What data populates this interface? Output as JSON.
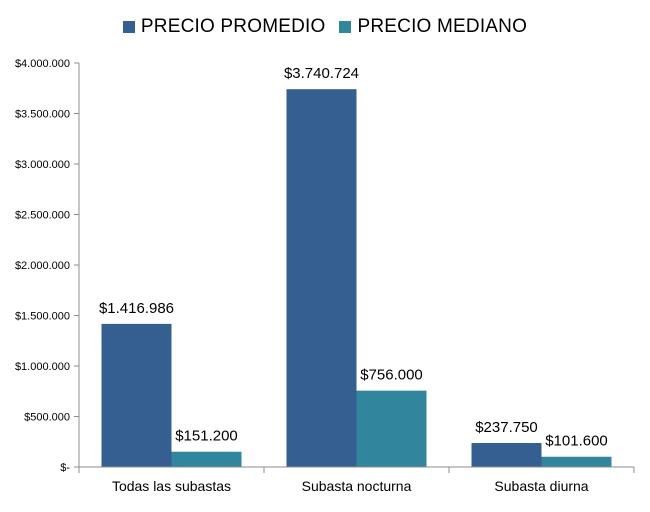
{
  "chart_data": {
    "type": "bar",
    "categories": [
      "Todas las subastas",
      "Subasta nocturna",
      "Subasta diurna"
    ],
    "series": [
      {
        "name": "PRECIO PROMEDIO",
        "color": "#355f91",
        "values": [
          1416986,
          3740724,
          237750
        ],
        "labels": [
          "$1.416.986",
          "$3.740.724",
          "$237.750"
        ]
      },
      {
        "name": "PRECIO MEDIANO",
        "color": "#31859c",
        "values": [
          151200,
          756000,
          101600
        ],
        "labels": [
          "$151.200",
          "$756.000",
          "$101.600"
        ]
      }
    ],
    "ylim": [
      0,
      4000000
    ],
    "yticks": [
      0,
      500000,
      1000000,
      1500000,
      2000000,
      2500000,
      3000000,
      3500000,
      4000000
    ],
    "ytick_labels": [
      "$-",
      "$500.000",
      "$1.000.000",
      "$1.500.000",
      "$2.000.000",
      "$2.500.000",
      "$3.000.000",
      "$3.500.000",
      "$4.000.000"
    ],
    "legend_position": "top-center",
    "grid": false
  }
}
